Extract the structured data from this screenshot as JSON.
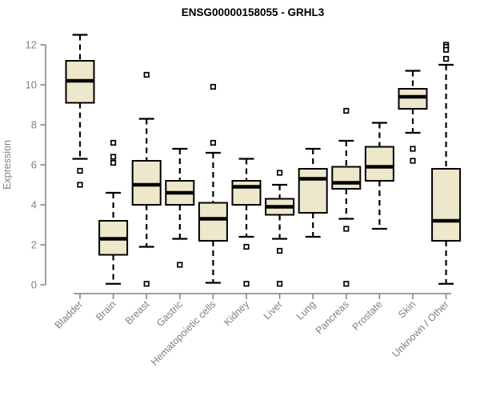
{
  "chart_data": {
    "type": "boxplot",
    "title": "ENSG00000158055 - GRHL3",
    "ylabel": "Expression",
    "ylim": [
      0,
      12
    ],
    "yticks": [
      0,
      2,
      4,
      6,
      8,
      10,
      12
    ],
    "grid": false,
    "legend": "none",
    "categories": [
      "Bladder",
      "Brain",
      "Breast",
      "Gastric",
      "Hematopoietic cells",
      "Kidney",
      "Liver",
      "Lung",
      "Pancreas",
      "Prostate",
      "Skin",
      "Unknown / Other"
    ],
    "boxes": [
      {
        "category": "Bladder",
        "whisker_low": 6.3,
        "q1": 9.1,
        "median": 10.2,
        "q3": 11.2,
        "whisker_high": 12.5,
        "outliers": [
          5.7,
          5.0
        ]
      },
      {
        "category": "Brain",
        "whisker_low": 0.05,
        "q1": 1.5,
        "median": 2.3,
        "q3": 3.2,
        "whisker_high": 4.6,
        "outliers": [
          7.1,
          6.4,
          6.1
        ]
      },
      {
        "category": "Breast",
        "whisker_low": 1.9,
        "q1": 4.0,
        "median": 5.0,
        "q3": 6.2,
        "whisker_high": 8.3,
        "outliers": [
          10.5,
          0.05
        ]
      },
      {
        "category": "Gastric",
        "whisker_low": 2.3,
        "q1": 4.0,
        "median": 4.6,
        "q3": 5.2,
        "whisker_high": 6.8,
        "outliers": [
          1.0
        ]
      },
      {
        "category": "Hematopoietic cells",
        "whisker_low": 0.1,
        "q1": 2.2,
        "median": 3.3,
        "q3": 4.1,
        "whisker_high": 6.6,
        "outliers": [
          9.9,
          7.1
        ]
      },
      {
        "category": "Kidney",
        "whisker_low": 2.4,
        "q1": 4.0,
        "median": 4.9,
        "q3": 5.2,
        "whisker_high": 6.3,
        "outliers": [
          1.9,
          0.05
        ]
      },
      {
        "category": "Liver",
        "whisker_low": 2.3,
        "q1": 3.5,
        "median": 3.9,
        "q3": 4.3,
        "whisker_high": 5.0,
        "outliers": [
          5.6,
          1.7,
          0.05
        ]
      },
      {
        "category": "Lung",
        "whisker_low": 2.4,
        "q1": 3.6,
        "median": 5.3,
        "q3": 5.8,
        "whisker_high": 6.8,
        "outliers": []
      },
      {
        "category": "Pancreas",
        "whisker_low": 3.3,
        "q1": 4.8,
        "median": 5.1,
        "q3": 5.9,
        "whisker_high": 7.2,
        "outliers": [
          8.7,
          2.8,
          0.05
        ]
      },
      {
        "category": "Prostate",
        "whisker_low": 2.8,
        "q1": 5.2,
        "median": 5.9,
        "q3": 6.9,
        "whisker_high": 8.1,
        "outliers": []
      },
      {
        "category": "Skin",
        "whisker_low": 7.6,
        "q1": 8.8,
        "median": 9.4,
        "q3": 9.8,
        "whisker_high": 10.7,
        "outliers": [
          6.8,
          6.2
        ]
      },
      {
        "category": "Unknown / Other",
        "whisker_low": 0.05,
        "q1": 2.2,
        "median": 3.2,
        "q3": 5.8,
        "whisker_high": 11.0,
        "outliers": [
          12.0,
          11.9,
          11.75,
          11.3
        ]
      }
    ],
    "colors": {
      "box_fill": "#EDE7CB",
      "box_stroke": "#000000",
      "median": "#000000",
      "whisker": "#000000",
      "outlier_stroke": "#000000",
      "outlier_fill": "#FFFFFF",
      "axis": "#808080",
      "tick_label": "#808080",
      "title": "#000000",
      "background": "#FFFFFF"
    }
  }
}
